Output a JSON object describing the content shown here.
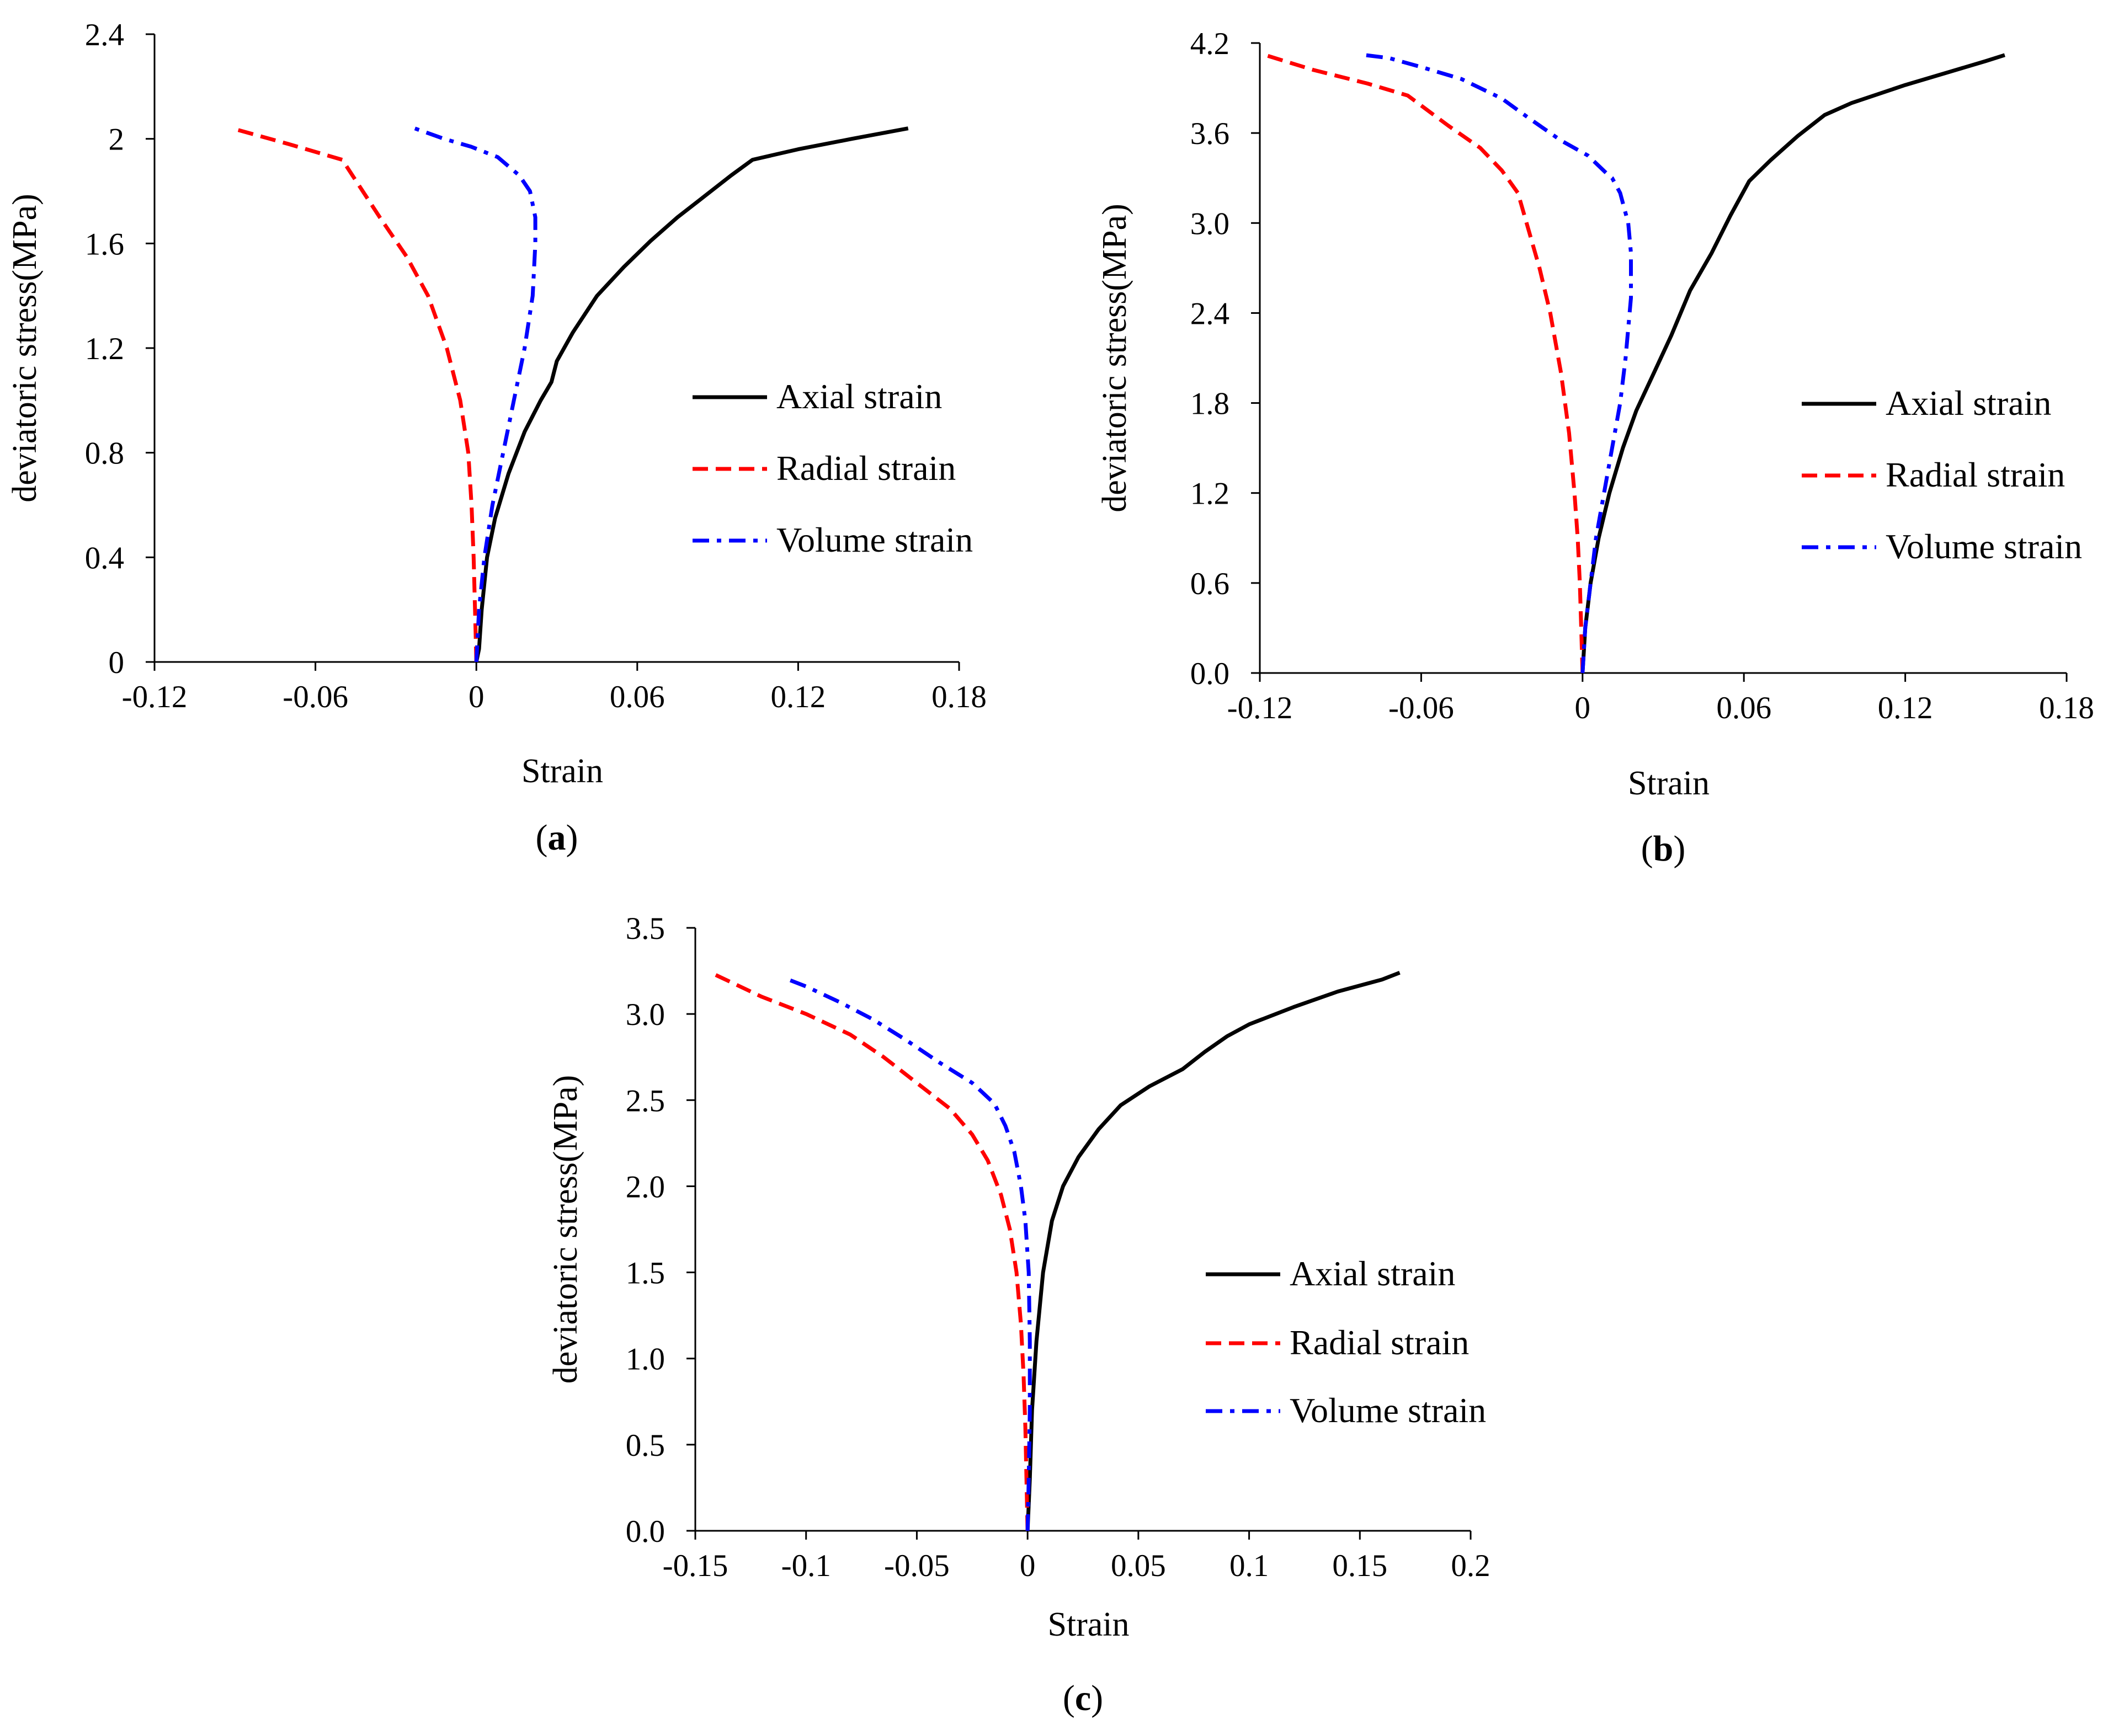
{
  "figure": {
    "panels": [
      "(a)",
      "(b)",
      "(c)"
    ]
  },
  "chart_data": [
    {
      "id": "a",
      "type": "line",
      "panel_label": "(a)",
      "panel_letter": "a",
      "xlabel": "Strain",
      "ylabel": "deviatoric stress(MPa)",
      "xlim": [
        -0.12,
        0.18
      ],
      "ylim": [
        0,
        2.4
      ],
      "xticks": [
        -0.12,
        -0.06,
        0,
        0.06,
        0.12,
        0.18
      ],
      "xtick_labels": [
        "-0.12",
        "-0.06",
        "0",
        "0.06",
        "0.12",
        "0.18"
      ],
      "yticks": [
        0,
        0.4,
        0.8,
        1.2,
        1.6,
        2,
        2.4
      ],
      "ytick_labels": [
        "0",
        "0.4",
        "0.8",
        "1.2",
        "1.6",
        "2",
        "2.4"
      ],
      "legend_position": "right",
      "series": [
        {
          "name": "Axial strain",
          "color": "#000000",
          "dash": "solid",
          "x": [
            0,
            0.001,
            0.002,
            0.004,
            0.007,
            0.012,
            0.018,
            0.024,
            0.028,
            0.03,
            0.036,
            0.045,
            0.055,
            0.065,
            0.075,
            0.085,
            0.095,
            0.103,
            0.12,
            0.14,
            0.161
          ],
          "y": [
            0,
            0.05,
            0.2,
            0.4,
            0.55,
            0.72,
            0.88,
            1.0,
            1.07,
            1.15,
            1.26,
            1.4,
            1.51,
            1.61,
            1.7,
            1.78,
            1.86,
            1.92,
            1.96,
            2.0,
            2.04
          ]
        },
        {
          "name": "Radial strain",
          "color": "#ff0000",
          "dash": "dashed",
          "x": [
            0,
            -0.0005,
            -0.001,
            -0.0018,
            -0.003,
            -0.006,
            -0.011,
            -0.018,
            -0.026,
            -0.036,
            -0.05,
            -0.07,
            -0.091
          ],
          "y": [
            0,
            0.2,
            0.4,
            0.6,
            0.8,
            1.0,
            1.2,
            1.4,
            1.55,
            1.7,
            1.92,
            1.98,
            2.04
          ]
        },
        {
          "name": "Volume strain",
          "color": "#0000ff",
          "dash": "dashdot",
          "x": [
            0,
            0.001,
            0.003,
            0.006,
            0.01,
            0.014,
            0.018,
            0.021,
            0.022,
            0.022,
            0.02,
            0.016,
            0.008,
            -0.002,
            -0.012,
            -0.023
          ],
          "y": [
            0,
            0.2,
            0.4,
            0.6,
            0.8,
            1.0,
            1.2,
            1.4,
            1.6,
            1.7,
            1.8,
            1.86,
            1.93,
            1.97,
            2.0,
            2.04
          ]
        }
      ]
    },
    {
      "id": "b",
      "type": "line",
      "panel_label": "(b)",
      "panel_letter": "b",
      "xlabel": "Strain",
      "ylabel": "deviatoric stress(MPa)",
      "xlim": [
        -0.12,
        0.18
      ],
      "ylim": [
        0.0,
        4.2
      ],
      "xticks": [
        -0.12,
        -0.06,
        0,
        0.06,
        0.12,
        0.18
      ],
      "xtick_labels": [
        "-0.12",
        "-0.06",
        "0",
        "0.06",
        "0.12",
        "0.18"
      ],
      "yticks": [
        0,
        0.6,
        1.2,
        1.8,
        2.4,
        3.0,
        3.6,
        4.2
      ],
      "ytick_labels": [
        "0.0",
        "0.6",
        "1.2",
        "1.8",
        "2.4",
        "3.0",
        "3.6",
        "4.2"
      ],
      "legend_position": "right",
      "series": [
        {
          "name": "Axial strain",
          "color": "#000000",
          "dash": "solid",
          "x": [
            0,
            0.001,
            0.003,
            0.006,
            0.01,
            0.015,
            0.02,
            0.026,
            0.033,
            0.04,
            0.048,
            0.055,
            0.062,
            0.07,
            0.08,
            0.09,
            0.1,
            0.11,
            0.12,
            0.135,
            0.15,
            0.157
          ],
          "y": [
            0,
            0.3,
            0.6,
            0.9,
            1.2,
            1.5,
            1.75,
            1.98,
            2.25,
            2.55,
            2.8,
            3.05,
            3.28,
            3.42,
            3.58,
            3.72,
            3.8,
            3.86,
            3.92,
            4.0,
            4.08,
            4.12
          ]
        },
        {
          "name": "Radial strain",
          "color": "#ff0000",
          "dash": "dashed",
          "x": [
            0,
            -0.0005,
            -0.001,
            -0.0018,
            -0.003,
            -0.005,
            -0.008,
            -0.012,
            -0.016,
            -0.02,
            -0.024,
            -0.03,
            -0.038,
            -0.05,
            -0.065,
            -0.08,
            -0.1,
            -0.118
          ],
          "y": [
            0,
            0.3,
            0.6,
            0.9,
            1.2,
            1.6,
            2.0,
            2.4,
            2.7,
            2.95,
            3.2,
            3.35,
            3.5,
            3.65,
            3.85,
            3.93,
            4.02,
            4.12
          ]
        },
        {
          "name": "Volume strain",
          "color": "#0000ff",
          "dash": "dashdot",
          "x": [
            0,
            0.001,
            0.003,
            0.005,
            0.008,
            0.011,
            0.014,
            0.016,
            0.018,
            0.018,
            0.017,
            0.014,
            0.011,
            0.009,
            0.002,
            -0.008,
            -0.02,
            -0.03,
            -0.045,
            -0.06,
            -0.072,
            -0.081
          ],
          "y": [
            0,
            0.3,
            0.6,
            0.9,
            1.2,
            1.5,
            1.8,
            2.1,
            2.5,
            2.8,
            3.0,
            3.2,
            3.3,
            3.33,
            3.45,
            3.55,
            3.7,
            3.83,
            3.96,
            4.04,
            4.1,
            4.12
          ]
        }
      ]
    },
    {
      "id": "c",
      "type": "line",
      "panel_label": "(c)",
      "panel_letter": "c",
      "xlabel": "Strain",
      "ylabel": "deviatoric stress(MPa)",
      "xlim": [
        -0.15,
        0.2
      ],
      "ylim": [
        0.0,
        3.5
      ],
      "xticks": [
        -0.15,
        -0.1,
        -0.05,
        0,
        0.05,
        0.1,
        0.15,
        0.2
      ],
      "xtick_labels": [
        "-0.15",
        "-0.1",
        "-0.05",
        "0",
        "0.05",
        "0.1",
        "0.15",
        "0.2"
      ],
      "yticks": [
        0,
        0.5,
        1.0,
        1.5,
        2.0,
        2.5,
        3.0,
        3.5
      ],
      "ytick_labels": [
        "0.0",
        "0.5",
        "1.0",
        "1.5",
        "2.0",
        "2.5",
        "3.0",
        "3.5"
      ],
      "legend_position": "right",
      "series": [
        {
          "name": "Axial strain",
          "color": "#000000",
          "dash": "solid",
          "x": [
            0,
            0.001,
            0.002,
            0.004,
            0.007,
            0.011,
            0.016,
            0.023,
            0.032,
            0.042,
            0.055,
            0.07,
            0.08,
            0.09,
            0.1,
            0.12,
            0.14,
            0.16,
            0.168
          ],
          "y": [
            0,
            0.3,
            0.7,
            1.1,
            1.5,
            1.8,
            2.0,
            2.17,
            2.33,
            2.47,
            2.58,
            2.68,
            2.78,
            2.87,
            2.94,
            3.04,
            3.13,
            3.2,
            3.24
          ]
        },
        {
          "name": "Radial strain",
          "color": "#ff0000",
          "dash": "dashed",
          "x": [
            0,
            -0.0005,
            -0.001,
            -0.0018,
            -0.003,
            -0.005,
            -0.008,
            -0.012,
            -0.018,
            -0.025,
            -0.035,
            -0.05,
            -0.065,
            -0.08,
            -0.1,
            -0.12,
            -0.143
          ],
          "y": [
            0,
            0.3,
            0.6,
            0.9,
            1.2,
            1.5,
            1.75,
            1.95,
            2.15,
            2.3,
            2.45,
            2.6,
            2.75,
            2.88,
            3.0,
            3.1,
            3.24
          ]
        },
        {
          "name": "Volume strain",
          "color": "#0000ff",
          "dash": "dashdot",
          "x": [
            0,
            0.0005,
            0.001,
            0.001,
            0.0005,
            -0.001,
            -0.003,
            -0.006,
            -0.01,
            -0.015,
            -0.025,
            -0.04,
            -0.055,
            -0.07,
            -0.085,
            -0.1,
            -0.11
          ],
          "y": [
            0,
            0.3,
            0.7,
            1.1,
            1.5,
            1.8,
            2.0,
            2.2,
            2.35,
            2.48,
            2.6,
            2.72,
            2.85,
            2.97,
            3.07,
            3.16,
            3.21
          ]
        }
      ]
    }
  ]
}
